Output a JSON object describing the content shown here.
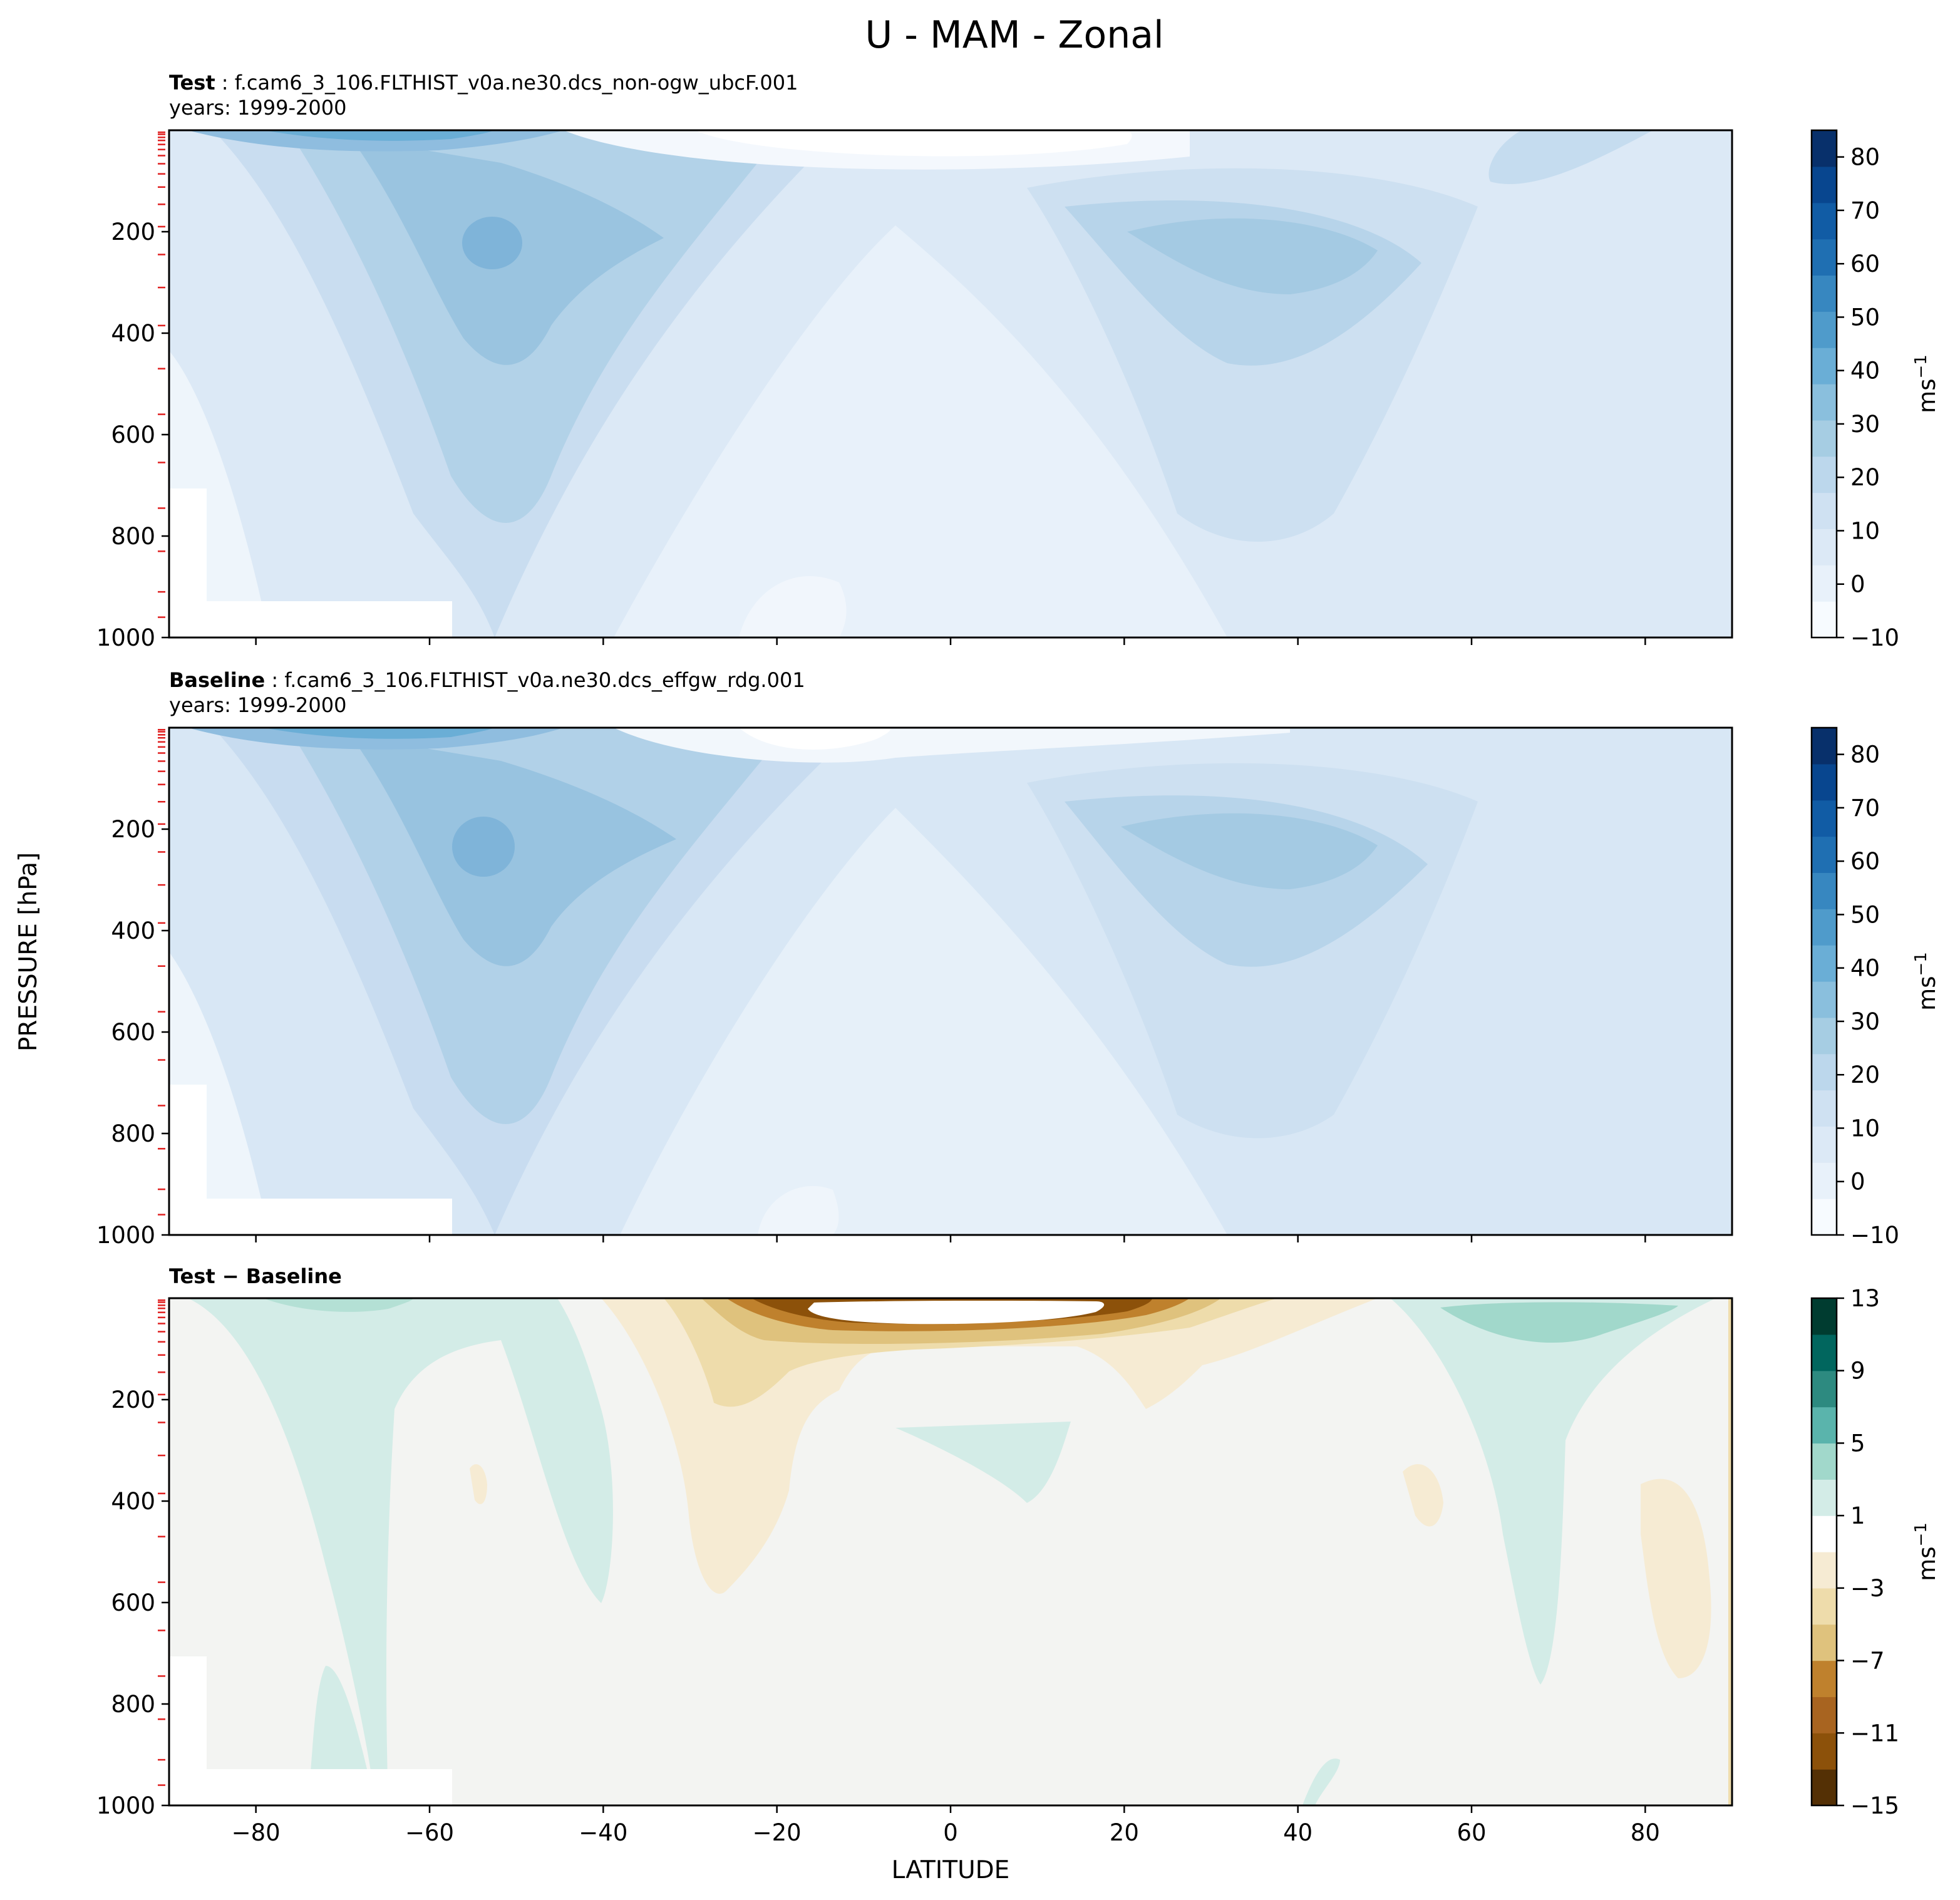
{
  "figure": {
    "title": "U - MAM - Zonal",
    "y_label": "PRESSURE [hPa]",
    "x_label": "LATITUDE"
  },
  "chart_data": [
    {
      "type": "contourf",
      "panel": "test",
      "title_bold": "Test",
      "title_rest": " : f.cam6_3_106.FLTHIST_v0a.ne30.dcs_non-ogw_ubcF.001",
      "subtitle": "years: 1999-2000",
      "variable": "U (zonal wind)",
      "x": "latitude",
      "xlim": [
        -90,
        90
      ],
      "xticks": [
        -80,
        -60,
        -40,
        -20,
        0,
        20,
        40,
        60,
        80
      ],
      "y": "pressure",
      "ylim": [
        1000,
        0
      ],
      "yticks": [
        200,
        400,
        600,
        800,
        1000
      ],
      "colormap": "Blues",
      "colorbar_label": "ms",
      "colorbar_label_sup": "−1",
      "colorbar_range": [
        -10,
        85
      ],
      "colorbar_ticks": [
        -10,
        0,
        10,
        20,
        30,
        40,
        50,
        60,
        70,
        80
      ],
      "colorbar_tick_labels": [
        "−10",
        "0",
        "10",
        "20",
        "30",
        "40",
        "50",
        "60",
        "70",
        "80"
      ],
      "features": [
        {
          "name": "SH westerly jet",
          "lat": -53,
          "pressure": 230,
          "value": 40
        },
        {
          "name": "NH westerly jet",
          "lat": 32,
          "pressure": 200,
          "value": 35
        },
        {
          "name": "upper tropical minimum",
          "lat": -5,
          "pressure": 20,
          "value": -5
        }
      ]
    },
    {
      "type": "contourf",
      "panel": "baseline",
      "title_bold": "Baseline",
      "title_rest": " : f.cam6_3_106.FLTHIST_v0a.ne30.dcs_effgw_rdg.001",
      "subtitle": "years: 1999-2000",
      "variable": "U (zonal wind)",
      "x": "latitude",
      "xlim": [
        -90,
        90
      ],
      "xticks": [
        -80,
        -60,
        -40,
        -20,
        0,
        20,
        40,
        60,
        80
      ],
      "y": "pressure",
      "ylim": [
        1000,
        0
      ],
      "yticks": [
        200,
        400,
        600,
        800,
        1000
      ],
      "colormap": "Blues",
      "colorbar_label": "ms",
      "colorbar_label_sup": "−1",
      "colorbar_range": [
        -10,
        85
      ],
      "colorbar_ticks": [
        -10,
        0,
        10,
        20,
        30,
        40,
        50,
        60,
        70,
        80
      ],
      "colorbar_tick_labels": [
        "−10",
        "0",
        "10",
        "20",
        "30",
        "40",
        "50",
        "60",
        "70",
        "80"
      ],
      "features": [
        {
          "name": "SH westerly jet",
          "lat": -53,
          "pressure": 230,
          "value": 40
        },
        {
          "name": "NH westerly jet",
          "lat": 30,
          "pressure": 200,
          "value": 35
        },
        {
          "name": "upper tropical minimum",
          "lat": -15,
          "pressure": 20,
          "value": -5
        }
      ]
    },
    {
      "type": "contourf",
      "panel": "difference",
      "title_bold": "Test − Baseline",
      "title_rest": "",
      "subtitle": "",
      "variable": "U difference",
      "x": "latitude",
      "xlim": [
        -90,
        90
      ],
      "xticks": [
        -80,
        -60,
        -40,
        -20,
        0,
        20,
        40,
        60,
        80
      ],
      "xtick_labels": [
        "−80",
        "−60",
        "−40",
        "−20",
        "0",
        "20",
        "40",
        "60",
        "80"
      ],
      "y": "pressure",
      "ylim": [
        1000,
        0
      ],
      "yticks": [
        200,
        400,
        600,
        800,
        1000
      ],
      "colormap": "BrBG",
      "colorbar_label": "ms",
      "colorbar_label_sup": "−1",
      "colorbar_range": [
        -15,
        13
      ],
      "colorbar_ticks": [
        -15,
        -11,
        -7,
        -3,
        1,
        5,
        9,
        13
      ],
      "colorbar_tick_labels": [
        "−15",
        "−11",
        "−7",
        "−3",
        "1",
        "5",
        "9",
        "13"
      ],
      "features": [
        {
          "name": "upper tropical deficit",
          "lat": -2,
          "pressure": 20,
          "value": -15
        },
        {
          "name": "NH high-latitude increase",
          "lat": 70,
          "pressure": 40,
          "value": 5
        },
        {
          "name": "SH high-latitude increase",
          "lat": -70,
          "pressure": 20,
          "value": 3
        }
      ]
    }
  ]
}
